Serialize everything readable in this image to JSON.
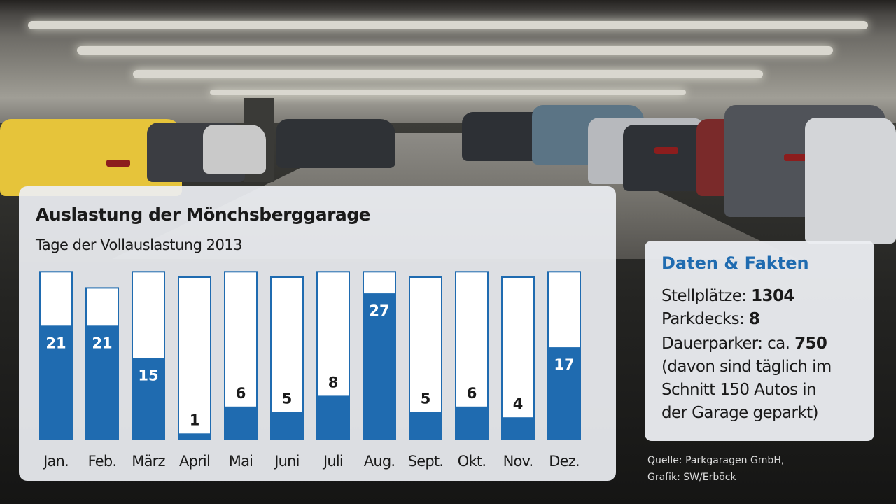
{
  "chart_data": {
    "type": "bar",
    "title": "Auslastung der Mönchsberggarage",
    "subtitle": "Tage der Vollauslastung 2013",
    "categories": [
      "Jan.",
      "Feb.",
      "März",
      "April",
      "Mai",
      "Juni",
      "Juli",
      "Aug.",
      "Sept.",
      "Okt.",
      "Nov.",
      "Dez."
    ],
    "values": [
      21,
      21,
      15,
      1,
      6,
      5,
      8,
      27,
      5,
      6,
      4,
      17
    ],
    "max_per_category": [
      31,
      28,
      31,
      30,
      31,
      30,
      31,
      31,
      30,
      31,
      30,
      31
    ],
    "ylim": [
      0,
      31
    ],
    "highlight_threshold": 15,
    "colors": {
      "bar": "#1f6bb0",
      "bar_frame": "#1f6bb0",
      "track": "#ffffff",
      "label_on_bar": "#ffffff",
      "label_above": "#1a1a1a"
    }
  },
  "facts": {
    "title": "Daten & Fakten",
    "stellplaetze_label": "Stellplätze:",
    "stellplaetze_value": "1304",
    "parkdecks_label": "Parkdecks:",
    "parkdecks_value": "8",
    "dauerparker_label": "Dauerparker: ca.",
    "dauerparker_value": "750",
    "note_line1": "(davon sind täglich im",
    "note_line2": "Schnitt 150 Autos in",
    "note_line3": "der Garage geparkt)"
  },
  "credits": {
    "source": "Quelle: Parkgaragen GmbH,",
    "graphic": "Grafik: SW/Erböck"
  }
}
